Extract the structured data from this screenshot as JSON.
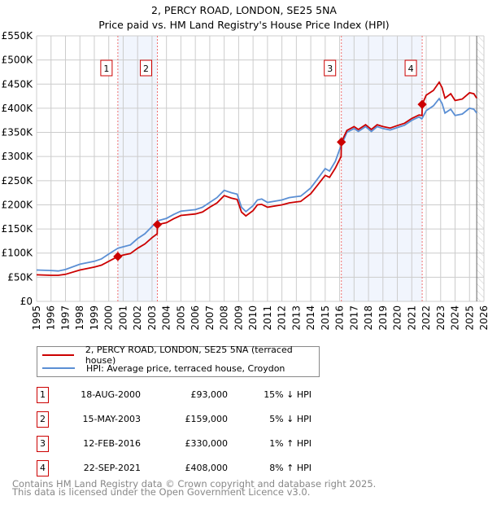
{
  "chart_data": {
    "type": "line",
    "title": "2, PERCY ROAD, LONDON, SE25 5NA",
    "subtitle": "Price paid vs. HM Land Registry's House Price Index (HPI)",
    "xlabel": "",
    "ylabel": "",
    "xlim": [
      1995,
      2026
    ],
    "ylim": [
      0,
      550000
    ],
    "grid": true,
    "y_ticks": [
      0,
      50000,
      100000,
      150000,
      200000,
      250000,
      300000,
      350000,
      400000,
      450000,
      500000,
      550000
    ],
    "y_tick_labels": [
      "£0",
      "£50K",
      "£100K",
      "£150K",
      "£200K",
      "£250K",
      "£300K",
      "£350K",
      "£400K",
      "£450K",
      "£500K",
      "£550K"
    ],
    "x_ticks": [
      "1995",
      "1996",
      "1997",
      "1998",
      "1999",
      "2000",
      "2001",
      "2002",
      "2003",
      "2004",
      "2005",
      "2006",
      "2007",
      "2008",
      "2009",
      "2010",
      "2011",
      "2012",
      "2013",
      "2014",
      "2015",
      "2016",
      "2017",
      "2018",
      "2019",
      "2020",
      "2021",
      "2022",
      "2023",
      "2024",
      "2025",
      "2026"
    ],
    "data_end": 2025.5,
    "series": [
      {
        "name": "2, PERCY ROAD, LONDON, SE25 5NA (terraced house)",
        "color": "#cc0000",
        "x": [
          1995,
          1996,
          1996.5,
          1997,
          1998,
          1999,
          1999.5,
          2000,
          2000.63,
          2001,
          2001.5,
          2002,
          2002.5,
          2003,
          2003.36,
          2003.37,
          2004,
          2004.5,
          2005,
          2006,
          2006.5,
          2007,
          2007.5,
          2008,
          2008.5,
          2008.9,
          2009.2,
          2009.5,
          2010,
          2010.3,
          2010.6,
          2011,
          2012,
          2012.5,
          2013,
          2013.3,
          2013.6,
          2014,
          2014.5,
          2015,
          2015.3,
          2015.7,
          2016.1,
          2016.12,
          2016.5,
          2017,
          2017.3,
          2017.8,
          2018.2,
          2018.6,
          2019,
          2019.5,
          2020,
          2020.5,
          2021,
          2021.5,
          2021.71,
          2021.72,
          2022,
          2022.5,
          2022.9,
          2023.1,
          2023.3,
          2023.7,
          2024,
          2024.5,
          2025,
          2025.3,
          2025.5
        ],
        "y": [
          55,
          54,
          54,
          56,
          65,
          71,
          75,
          83,
          93,
          96,
          99,
          110,
          119,
          132,
          140,
          159,
          163,
          171,
          178,
          181,
          185,
          195,
          204,
          219,
          214,
          211,
          185,
          177,
          188,
          200,
          201,
          195,
          200,
          204,
          206,
          207,
          214,
          223,
          242,
          261,
          257,
          276,
          300,
          330,
          354,
          362,
          356,
          366,
          356,
          366,
          362,
          359,
          364,
          369,
          379,
          386,
          385,
          408,
          427,
          437,
          454,
          443,
          421,
          430,
          416,
          419,
          432,
          430,
          421
        ],
        "y_unit": "thousand GBP"
      },
      {
        "name": "HPI: Average price, terraced house, Croydon",
        "color": "#5b8fd4",
        "x": [
          1995,
          1996,
          1996.5,
          1997,
          1998,
          1999,
          1999.5,
          2000,
          2000.63,
          2001,
          2001.5,
          2002,
          2002.5,
          2003,
          2003.4,
          2004,
          2004.5,
          2005,
          2006,
          2006.5,
          2007,
          2007.5,
          2008,
          2008.5,
          2008.9,
          2009.2,
          2009.5,
          2010,
          2010.3,
          2010.6,
          2011,
          2012,
          2012.5,
          2013,
          2013.3,
          2013.6,
          2014,
          2014.5,
          2015,
          2015.3,
          2015.7,
          2016,
          2016.5,
          2017,
          2017.3,
          2017.8,
          2018.2,
          2018.6,
          2019,
          2019.5,
          2020,
          2020.5,
          2021,
          2021.5,
          2021.7,
          2022,
          2022.5,
          2022.9,
          2023.1,
          2023.3,
          2023.7,
          2024,
          2024.5,
          2025,
          2025.3,
          2025.5
        ],
        "y": [
          65,
          64,
          63,
          66,
          77,
          83,
          88,
          98,
          110,
          113,
          117,
          130,
          140,
          155,
          167,
          172,
          180,
          187,
          190,
          195,
          205,
          215,
          230,
          225,
          222,
          195,
          186,
          198,
          210,
          212,
          205,
          210,
          215,
          217,
          218,
          225,
          235,
          255,
          275,
          270,
          290,
          315,
          350,
          358,
          352,
          362,
          352,
          362,
          358,
          355,
          360,
          365,
          375,
          382,
          378,
          395,
          405,
          420,
          410,
          390,
          398,
          385,
          388,
          400,
          398,
          390
        ],
        "y_unit": "thousand GBP"
      }
    ],
    "sales": [
      {
        "label": "1",
        "x": 2000.63,
        "price": 93
      },
      {
        "label": "2",
        "x": 2003.37,
        "price": 159
      },
      {
        "label": "3",
        "x": 2016.12,
        "price": 330
      },
      {
        "label": "4",
        "x": 2021.72,
        "price": 408
      }
    ]
  },
  "legend": {
    "property": "2, PERCY ROAD, LONDON, SE25 5NA (terraced house)",
    "hpi": "HPI: Average price, terraced house, Croydon"
  },
  "transactions": [
    {
      "num": "1",
      "date": "18-AUG-2000",
      "price": "£93,000",
      "hpi": "15% ↓ HPI"
    },
    {
      "num": "2",
      "date": "15-MAY-2003",
      "price": "£159,000",
      "hpi": "5% ↓ HPI"
    },
    {
      "num": "3",
      "date": "12-FEB-2016",
      "price": "£330,000",
      "hpi": "1% ↑ HPI"
    },
    {
      "num": "4",
      "date": "22-SEP-2021",
      "price": "£408,000",
      "hpi": "8% ↑ HPI"
    }
  ],
  "footer": {
    "line1": "Contains HM Land Registry data © Crown copyright and database right 2025.",
    "line2": "This data is licensed under the Open Government Licence v3.0."
  }
}
